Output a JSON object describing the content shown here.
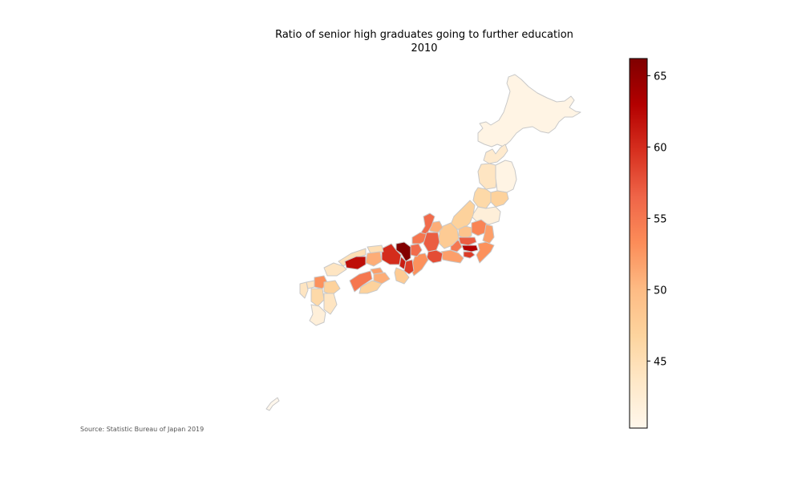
{
  "title": "Ratio of senior high graduates going to further education",
  "subtitle": "2010",
  "source": "Source: Statistic Bureau of Japan 2019",
  "chart_data": {
    "type": "choropleth",
    "colorscale": "OrRd",
    "colorbar": {
      "vmin": 40.3,
      "vmax": 66.2,
      "ticks": [
        45,
        50,
        55,
        60,
        65
      ],
      "tick_labels": [
        "45",
        "50",
        "55",
        "60",
        "65"
      ],
      "colors": [
        "#fff7ec",
        "#fee8c8",
        "#fdd49e",
        "#fdbb84",
        "#fc8d59",
        "#ef6548",
        "#d7301f",
        "#b30000",
        "#7f0000"
      ]
    },
    "regions": [
      {
        "id": "hokkaido",
        "value": 41
      },
      {
        "id": "aomori",
        "value": 43
      },
      {
        "id": "iwate",
        "value": 41
      },
      {
        "id": "akita",
        "value": 44
      },
      {
        "id": "miyagi",
        "value": 47
      },
      {
        "id": "yamagata",
        "value": 46
      },
      {
        "id": "fukushima",
        "value": 42
      },
      {
        "id": "niigata",
        "value": 47
      },
      {
        "id": "ibaraki",
        "value": 52
      },
      {
        "id": "tochigi",
        "value": 54
      },
      {
        "id": "gunma",
        "value": 49
      },
      {
        "id": "saitama",
        "value": 57
      },
      {
        "id": "chiba",
        "value": 53
      },
      {
        "id": "tokyo",
        "value": 63
      },
      {
        "id": "kanagawa",
        "value": 59
      },
      {
        "id": "yamanashi",
        "value": 55
      },
      {
        "id": "nagano",
        "value": 48
      },
      {
        "id": "toyama",
        "value": 51
      },
      {
        "id": "ishikawa",
        "value": 56
      },
      {
        "id": "fukui",
        "value": 55
      },
      {
        "id": "gifu",
        "value": 57
      },
      {
        "id": "shizuoka",
        "value": 52
      },
      {
        "id": "aichi",
        "value": 58
      },
      {
        "id": "mie",
        "value": 53
      },
      {
        "id": "shiga",
        "value": 56
      },
      {
        "id": "kyoto",
        "value": 66
      },
      {
        "id": "osaka",
        "value": 61
      },
      {
        "id": "hyogo",
        "value": 60
      },
      {
        "id": "nara",
        "value": 59
      },
      {
        "id": "wakayama",
        "value": 48
      },
      {
        "id": "tottori",
        "value": 45
      },
      {
        "id": "shimane",
        "value": 45
      },
      {
        "id": "okayama",
        "value": 51
      },
      {
        "id": "hiroshima",
        "value": 62
      },
      {
        "id": "yamaguchi",
        "value": 44
      },
      {
        "id": "tokushima",
        "value": 51
      },
      {
        "id": "kagawa",
        "value": 52
      },
      {
        "id": "ehime",
        "value": 55
      },
      {
        "id": "kochi",
        "value": 47
      },
      {
        "id": "fukuoka",
        "value": 53
      },
      {
        "id": "saga",
        "value": 44
      },
      {
        "id": "nagasaki",
        "value": 44
      },
      {
        "id": "kumamoto",
        "value": 46
      },
      {
        "id": "oita",
        "value": 47
      },
      {
        "id": "miyazaki",
        "value": 44
      },
      {
        "id": "kagoshima",
        "value": 42
      },
      {
        "id": "okinawa",
        "value": 40
      }
    ]
  }
}
